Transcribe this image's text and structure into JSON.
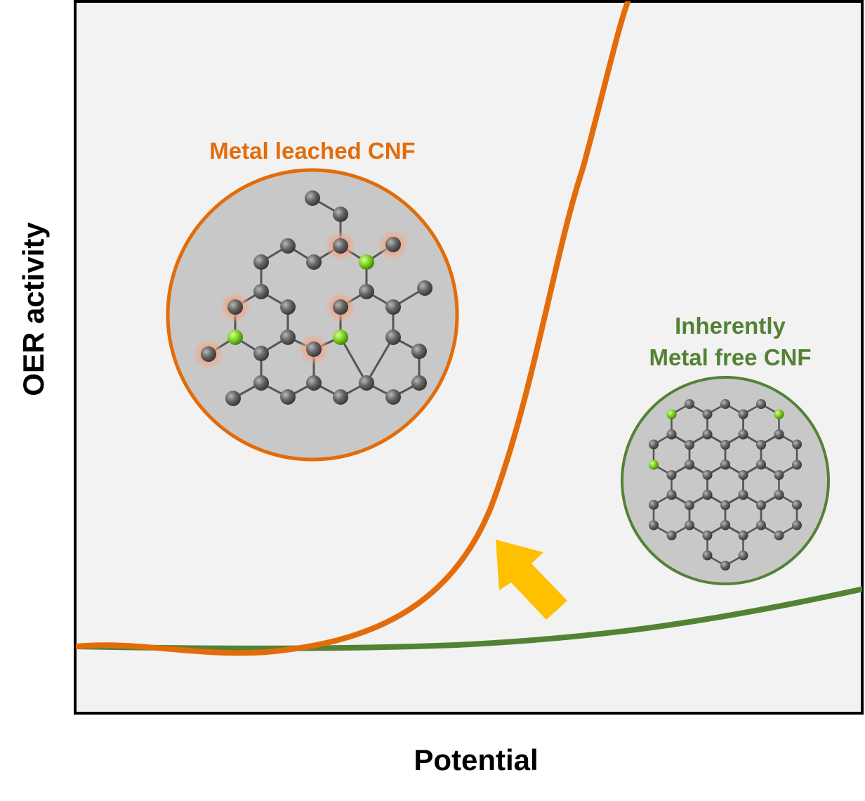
{
  "axes": {
    "xlabel": "Potential",
    "ylabel": "OER activity"
  },
  "annotations": {
    "leached": {
      "label": "Metal leached CNF",
      "color": "#e36c0a"
    },
    "metal_free": {
      "label_line1": "Inherently",
      "label_line2": "Metal free CNF",
      "color": "#548235"
    }
  },
  "colors": {
    "plot_background": "#f2f2f2",
    "inset_fill": "#c8c8c8",
    "carbon_atom": "#606060",
    "dopant_atom": "#7ed321",
    "arrow": "#ffc000",
    "defect_glow": "#f4a582"
  }
}
